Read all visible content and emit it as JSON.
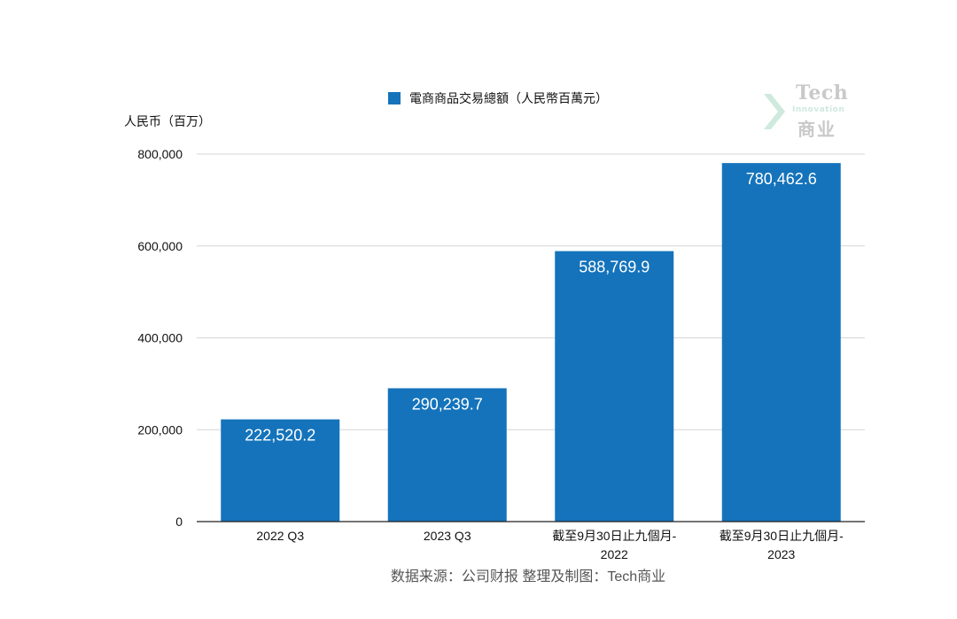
{
  "chart_data": {
    "type": "bar",
    "title": "",
    "ylabel": "人民币（百万）",
    "xlabel": "",
    "categories": [
      [
        "2022 Q3"
      ],
      [
        "2023 Q3"
      ],
      [
        "截至9月30日止九個月-",
        "2022"
      ],
      [
        "截至9月30日止九個月-",
        "2023"
      ]
    ],
    "series": [
      {
        "name": "電商商品交易總額（人民幣百萬元）",
        "values": [
          222520.2,
          290239.7,
          588769.9,
          780462.6
        ],
        "labels": [
          "222,520.2",
          "290,239.7",
          "588,769.9",
          "780,462.6"
        ],
        "color": "#1473bb"
      }
    ],
    "ylim": [
      0,
      800000
    ],
    "yticks": [
      0,
      200000,
      400000,
      600000,
      800000
    ],
    "ytick_labels": [
      "0",
      "200,000",
      "400,000",
      "600,000",
      "800,000"
    ],
    "grid": true,
    "legend": "top-center"
  },
  "source_note": "数据来源：公司财报 整理及制图：Tech商业",
  "logo": {
    "text_top": "Tech",
    "text_mid": "Innovation",
    "text_cn": "商业",
    "accent": "#3fbf8f"
  }
}
